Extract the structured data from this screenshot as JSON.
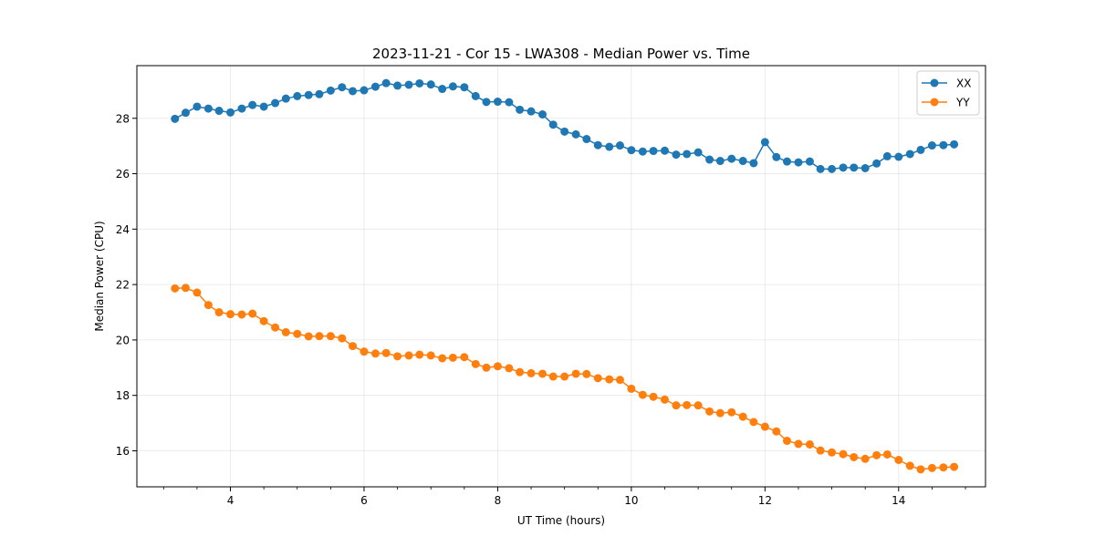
{
  "chart_data": {
    "type": "line",
    "title": "2023-11-21 - Cor 15 - LWA308 - Median Power vs. Time",
    "xlabel": "UT Time (hours)",
    "ylabel": "Median Power (CPU)",
    "xlim": [
      2.6,
      15.3
    ],
    "ylim": [
      14.7,
      29.9
    ],
    "xticks": [
      4,
      6,
      8,
      10,
      12,
      14
    ],
    "xtick_labels": [
      "4",
      "6",
      "8",
      "10",
      "12",
      "14"
    ],
    "yticks": [
      16,
      18,
      20,
      22,
      24,
      26,
      28
    ],
    "ytick_labels": [
      "16",
      "18",
      "20",
      "22",
      "24",
      "26",
      "28"
    ],
    "grid": true,
    "legend_position": "top-right",
    "x": [
      3.17,
      3.33,
      3.5,
      3.67,
      3.83,
      4.0,
      4.17,
      4.33,
      4.5,
      4.67,
      4.83,
      5.0,
      5.17,
      5.33,
      5.5,
      5.67,
      5.83,
      6.0,
      6.17,
      6.33,
      6.5,
      6.67,
      6.83,
      7.0,
      7.17,
      7.33,
      7.5,
      7.67,
      7.83,
      8.0,
      8.17,
      8.33,
      8.5,
      8.67,
      8.83,
      9.0,
      9.17,
      9.33,
      9.5,
      9.67,
      9.83,
      10.0,
      10.17,
      10.33,
      10.5,
      10.67,
      10.83,
      11.0,
      11.17,
      11.33,
      11.5,
      11.67,
      11.83,
      12.0,
      12.17,
      12.33,
      12.5,
      12.67,
      12.83,
      13.0,
      13.17,
      13.33,
      13.5,
      13.67,
      13.83,
      14.0,
      14.17,
      14.33,
      14.5,
      14.67,
      14.83
    ],
    "series": [
      {
        "name": "XX",
        "color": "#1f77b4",
        "values": [
          27.98,
          28.2,
          28.42,
          28.35,
          28.27,
          28.21,
          28.35,
          28.48,
          28.42,
          28.55,
          28.71,
          28.8,
          28.84,
          28.87,
          29.0,
          29.12,
          28.98,
          29.01,
          29.14,
          29.27,
          29.18,
          29.21,
          29.26,
          29.22,
          29.06,
          29.15,
          29.12,
          28.8,
          28.59,
          28.6,
          28.58,
          28.31,
          28.25,
          28.14,
          27.77,
          27.52,
          27.42,
          27.25,
          27.03,
          26.97,
          27.02,
          26.85,
          26.8,
          26.82,
          26.83,
          26.69,
          26.71,
          26.77,
          26.51,
          26.46,
          26.54,
          26.46,
          26.38,
          27.14,
          26.6,
          26.44,
          26.41,
          26.44,
          26.17,
          26.17,
          26.22,
          26.22,
          26.2,
          26.37,
          26.63,
          26.61,
          26.71,
          26.86,
          27.02,
          27.03,
          27.06
        ]
      },
      {
        "name": "YY",
        "color": "#ff7f0e",
        "values": [
          21.86,
          21.88,
          21.71,
          21.26,
          21.0,
          20.93,
          20.92,
          20.95,
          20.68,
          20.45,
          20.28,
          20.22,
          20.13,
          20.14,
          20.14,
          20.06,
          19.78,
          19.58,
          19.51,
          19.53,
          19.41,
          19.44,
          19.47,
          19.44,
          19.34,
          19.36,
          19.38,
          19.13,
          19.0,
          19.05,
          18.98,
          18.84,
          18.8,
          18.78,
          18.68,
          18.68,
          18.78,
          18.77,
          18.62,
          18.58,
          18.56,
          18.24,
          18.02,
          17.95,
          17.85,
          17.64,
          17.65,
          17.64,
          17.42,
          17.36,
          17.39,
          17.23,
          17.04,
          16.87,
          16.7,
          16.36,
          16.25,
          16.23,
          16.01,
          15.94,
          15.88,
          15.77,
          15.71,
          15.84,
          15.87,
          15.67,
          15.46,
          15.33,
          15.38,
          15.4,
          15.42
        ]
      }
    ]
  }
}
